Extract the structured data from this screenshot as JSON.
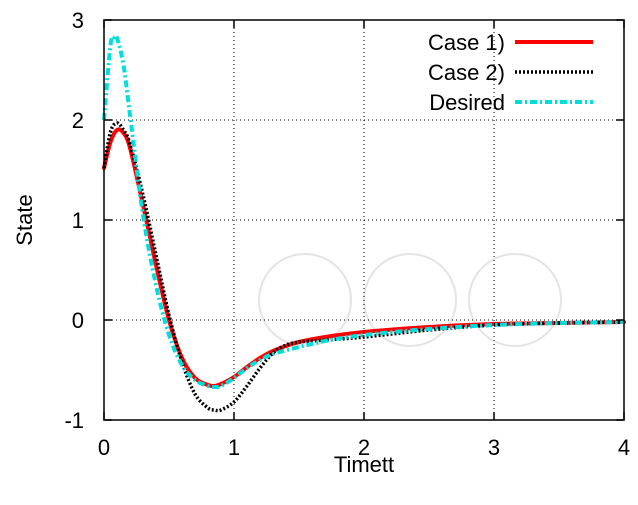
{
  "chart_data": {
    "type": "line",
    "xlabel": "Timett",
    "ylabel": "State",
    "xlim": [
      0,
      4
    ],
    "ylim": [
      -1,
      3
    ],
    "xticks": [
      0,
      1,
      2,
      3,
      4
    ],
    "yticks": [
      -1,
      0,
      1,
      2,
      3
    ],
    "grid": true,
    "legend_position": "top-right",
    "series": [
      {
        "name": "Case 1)",
        "color": "#ff0000",
        "style": "solid",
        "x": [
          0,
          0.05,
          0.1,
          0.15,
          0.2,
          0.3,
          0.4,
          0.5,
          0.6,
          0.7,
          0.8,
          0.85,
          0.9,
          1.0,
          1.1,
          1.2,
          1.3,
          1.4,
          1.5,
          1.7,
          2.0,
          2.5,
          3.0,
          3.5,
          4.0
        ],
        "y": [
          1.52,
          1.78,
          1.9,
          1.87,
          1.72,
          1.15,
          0.55,
          0.0,
          -0.38,
          -0.58,
          -0.65,
          -0.66,
          -0.64,
          -0.57,
          -0.47,
          -0.38,
          -0.31,
          -0.26,
          -0.22,
          -0.17,
          -0.12,
          -0.07,
          -0.04,
          -0.03,
          -0.02
        ]
      },
      {
        "name": "Case 2)",
        "color": "#000000",
        "style": "dotted",
        "x": [
          0,
          0.05,
          0.1,
          0.15,
          0.2,
          0.3,
          0.4,
          0.5,
          0.6,
          0.7,
          0.8,
          0.85,
          0.9,
          1.0,
          1.1,
          1.2,
          1.3,
          1.4,
          1.5,
          1.6,
          1.7,
          2.0,
          2.5,
          3.0,
          3.5,
          4.0
        ],
        "y": [
          1.52,
          1.88,
          1.97,
          1.9,
          1.76,
          1.25,
          0.65,
          0.05,
          -0.42,
          -0.74,
          -0.88,
          -0.9,
          -0.9,
          -0.82,
          -0.66,
          -0.48,
          -0.33,
          -0.25,
          -0.22,
          -0.21,
          -0.2,
          -0.17,
          -0.1,
          -0.05,
          -0.03,
          -0.02
        ]
      },
      {
        "name": "Desired",
        "color": "#00dddd",
        "style": "dash-dot",
        "x": [
          0,
          0.05,
          0.08,
          0.1,
          0.15,
          0.2,
          0.3,
          0.4,
          0.5,
          0.6,
          0.7,
          0.8,
          0.85,
          0.9,
          1.0,
          1.1,
          1.2,
          1.3,
          1.5,
          1.7,
          2.0,
          2.5,
          3.0,
          3.5,
          4.0
        ],
        "y": [
          2.0,
          2.75,
          2.83,
          2.82,
          2.55,
          2.05,
          1.05,
          0.35,
          -0.15,
          -0.45,
          -0.6,
          -0.66,
          -0.67,
          -0.66,
          -0.58,
          -0.48,
          -0.4,
          -0.34,
          -0.27,
          -0.21,
          -0.15,
          -0.09,
          -0.05,
          -0.03,
          -0.02
        ]
      }
    ]
  }
}
